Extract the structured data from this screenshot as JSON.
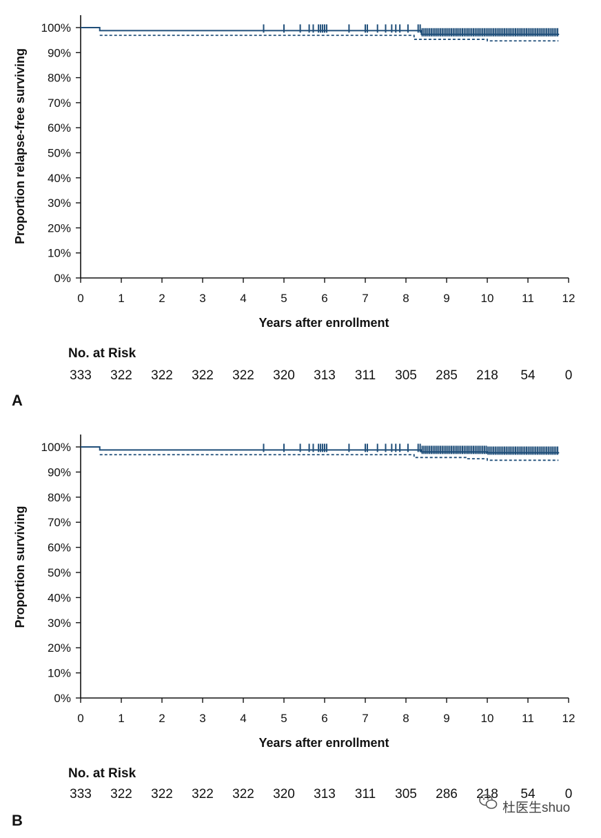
{
  "colors": {
    "curve": "#1f4e79",
    "ci": "#1f4e79",
    "axis": "#111111"
  },
  "watermark": {
    "text": "杜医生shuo",
    "icon": "wechat-icon"
  },
  "chart_data": [
    {
      "type": "line",
      "panel_label": "A",
      "xlabel": "Years after enrollment",
      "ylabel": "Proportion relapse-free surviving",
      "xlim": [
        0,
        12
      ],
      "ylim": [
        0,
        100
      ],
      "x_ticks": [
        "0",
        "1",
        "2",
        "3",
        "4",
        "5",
        "6",
        "7",
        "8",
        "9",
        "10",
        "11",
        "12"
      ],
      "y_ticks": [
        "0%",
        "10%",
        "20%",
        "30%",
        "40%",
        "50%",
        "60%",
        "70%",
        "80%",
        "90%",
        "100%"
      ],
      "y_tick_values": [
        0,
        10,
        20,
        30,
        40,
        50,
        60,
        70,
        80,
        90,
        100
      ],
      "series": [
        {
          "style": "solid",
          "x": [
            0,
            0.47,
            8.1,
            8.38,
            10.0,
            11.75
          ],
          "y": [
            100,
            98.8,
            98.8,
            97.3,
            97.3,
            97.0
          ]
        },
        {
          "style": "dashed",
          "x": [
            0.47,
            8.1,
            8.2,
            10.0,
            11.75
          ],
          "y": [
            96.9,
            96.9,
            95.3,
            94.7,
            94.7
          ]
        }
      ],
      "censor_times": [
        4.5,
        5.0,
        5.4,
        5.62,
        5.72,
        5.85,
        5.9,
        5.95,
        6.0,
        6.05,
        6.6,
        7.0,
        7.05,
        7.3,
        7.5,
        7.65,
        7.75,
        7.85,
        8.05,
        8.3,
        8.35
      ],
      "censor_dense_ranges": [
        [
          8.4,
          11.75
        ]
      ],
      "risk_table": {
        "title": "No. at Risk",
        "times": [
          0,
          1,
          2,
          3,
          4,
          5,
          6,
          7,
          8,
          9,
          10,
          11,
          12
        ],
        "values": [
          "333",
          "322",
          "322",
          "322",
          "322",
          "320",
          "313",
          "311",
          "305",
          "285",
          "218",
          "54",
          "0"
        ]
      }
    },
    {
      "type": "line",
      "panel_label": "B",
      "xlabel": "Years after enrollment",
      "ylabel": "Proportion surviving",
      "xlim": [
        0,
        12
      ],
      "ylim": [
        0,
        100
      ],
      "x_ticks": [
        "0",
        "1",
        "2",
        "3",
        "4",
        "5",
        "6",
        "7",
        "8",
        "9",
        "10",
        "11",
        "12"
      ],
      "y_ticks": [
        "0%",
        "10%",
        "20%",
        "30%",
        "40%",
        "50%",
        "60%",
        "70%",
        "80%",
        "90%",
        "100%"
      ],
      "y_tick_values": [
        0,
        10,
        20,
        30,
        40,
        50,
        60,
        70,
        80,
        90,
        100
      ],
      "series": [
        {
          "style": "solid",
          "x": [
            0,
            0.47,
            8.1,
            8.38,
            10.0,
            11.75
          ],
          "y": [
            100,
            98.8,
            98.8,
            98.0,
            97.7,
            97.4
          ]
        },
        {
          "style": "dashed",
          "x": [
            0.47,
            8.1,
            8.2,
            9.5,
            10.0,
            11.75
          ],
          "y": [
            96.9,
            96.9,
            95.8,
            95.3,
            94.7,
            94.7
          ]
        }
      ],
      "censor_times": [
        4.5,
        5.0,
        5.4,
        5.62,
        5.72,
        5.85,
        5.9,
        5.95,
        6.0,
        6.05,
        6.6,
        7.0,
        7.05,
        7.3,
        7.5,
        7.65,
        7.75,
        7.85,
        8.05,
        8.3,
        8.35
      ],
      "censor_dense_ranges": [
        [
          8.4,
          11.75
        ]
      ],
      "risk_table": {
        "title": "No. at Risk",
        "times": [
          0,
          1,
          2,
          3,
          4,
          5,
          6,
          7,
          8,
          9,
          10,
          11,
          12
        ],
        "values": [
          "333",
          "322",
          "322",
          "322",
          "322",
          "320",
          "313",
          "311",
          "305",
          "286",
          "218",
          "54",
          "0"
        ]
      }
    }
  ]
}
